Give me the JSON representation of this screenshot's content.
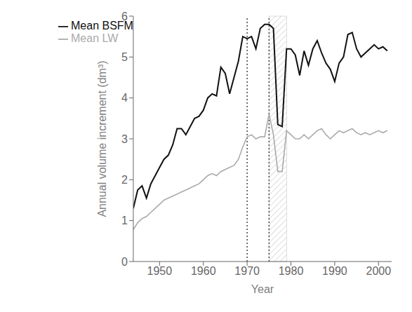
{
  "chart_data": {
    "type": "line",
    "xlabel": "Year",
    "ylabel": "Annual volume increment (dm³)",
    "x": [
      1944,
      1945,
      1946,
      1947,
      1948,
      1949,
      1950,
      1951,
      1952,
      1953,
      1954,
      1955,
      1956,
      1957,
      1958,
      1959,
      1960,
      1961,
      1962,
      1963,
      1964,
      1965,
      1966,
      1967,
      1968,
      1969,
      1970,
      1971,
      1972,
      1973,
      1974,
      1975,
      1976,
      1977,
      1978,
      1979,
      1980,
      1981,
      1982,
      1983,
      1984,
      1985,
      1986,
      1987,
      1988,
      1989,
      1990,
      1991,
      1992,
      1993,
      1994,
      1995,
      1996,
      1997,
      1998,
      1999,
      2000,
      2001,
      2002
    ],
    "series": [
      {
        "name": "Mean BSFM",
        "color": "#111111",
        "values": [
          1.3,
          1.75,
          1.85,
          1.55,
          1.9,
          2.1,
          2.3,
          2.5,
          2.6,
          2.85,
          3.25,
          3.25,
          3.1,
          3.3,
          3.5,
          3.55,
          3.7,
          4.0,
          4.1,
          4.05,
          4.75,
          4.6,
          4.1,
          4.5,
          4.9,
          5.5,
          5.45,
          5.5,
          5.2,
          5.7,
          5.8,
          5.8,
          5.7,
          3.35,
          3.3,
          5.2,
          5.2,
          5.05,
          4.55,
          5.15,
          4.8,
          5.2,
          5.4,
          5.1,
          4.85,
          4.7,
          4.4,
          4.85,
          5.0,
          5.55,
          5.6,
          5.2,
          5.0,
          5.1,
          5.2,
          5.3,
          5.2,
          5.25,
          5.15
        ]
      },
      {
        "name": "Mean LW",
        "color": "#aaaaaa",
        "values": [
          0.78,
          0.95,
          1.05,
          1.1,
          1.2,
          1.3,
          1.4,
          1.5,
          1.55,
          1.6,
          1.65,
          1.7,
          1.75,
          1.8,
          1.85,
          1.9,
          2.0,
          2.1,
          2.15,
          2.1,
          2.2,
          2.25,
          2.3,
          2.35,
          2.5,
          2.8,
          3.05,
          3.1,
          3.0,
          3.05,
          3.05,
          3.6,
          3.1,
          2.2,
          2.2,
          3.2,
          3.1,
          3.0,
          3.0,
          3.1,
          3.0,
          3.1,
          3.2,
          3.25,
          3.1,
          3.0,
          3.1,
          3.2,
          3.15,
          3.2,
          3.25,
          3.15,
          3.1,
          3.15,
          3.1,
          3.15,
          3.2,
          3.15,
          3.2
        ]
      }
    ],
    "xlim": [
      1944,
      2003
    ],
    "ylim": [
      0,
      6
    ],
    "xticks": [
      1950,
      1960,
      1970,
      1980,
      1990,
      2000
    ],
    "yticks": [
      0,
      1,
      2,
      3,
      4,
      5,
      6
    ],
    "vlines": [
      1970,
      1975
    ],
    "shaded_range": [
      1975,
      1979
    ],
    "legend": "upper left",
    "grid": false
  }
}
